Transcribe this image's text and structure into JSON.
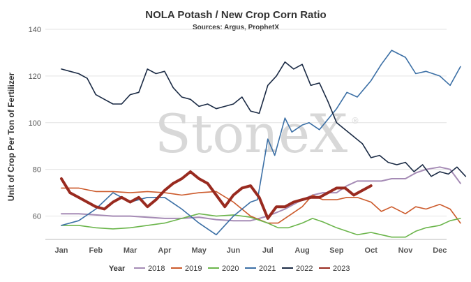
{
  "chart_data": {
    "type": "line",
    "title": "NOLA Potash / New Crop Corn Ratio",
    "subtitle": "Sources: Argus, ProphetX",
    "ylabel": "Unit of Crop Per Ton of Fertilizer",
    "xlabel": "",
    "ylim": [
      50,
      140
    ],
    "yticks": [
      60,
      80,
      100,
      120,
      140
    ],
    "xlim": [
      0,
      12
    ],
    "month_labels": [
      "Jan",
      "Feb",
      "Mar",
      "Apr",
      "May",
      "Jun",
      "Jul",
      "Aug",
      "Sep",
      "Oct",
      "Nov",
      "Dec"
    ],
    "grid": "horizontal",
    "legend_title": "Year",
    "legend_position": "bottom",
    "watermark": "StoneX",
    "watermark_mark": "®",
    "series": [
      {
        "name": "2018",
        "color": "#a58bb5",
        "width": 2,
        "x": [
          0,
          0.5,
          1,
          1.5,
          2,
          2.5,
          3,
          3.5,
          4,
          4.5,
          5,
          5.5,
          6,
          6.5,
          7,
          7.3,
          7.6,
          8,
          8.3,
          8.6,
          9,
          9.3,
          9.6,
          10,
          10.3,
          10.6,
          11,
          11.3,
          11.6
        ],
        "y": [
          61,
          61,
          60.5,
          60,
          60,
          59.5,
          59,
          59,
          59.5,
          58.5,
          58,
          58,
          60,
          63,
          67,
          69,
          70,
          70,
          73,
          75,
          75,
          75,
          76,
          76,
          78.5,
          80,
          81,
          80,
          74
        ]
      },
      {
        "name": "2019",
        "color": "#cc5a2b",
        "width": 1.6,
        "x": [
          0,
          0.5,
          1,
          1.5,
          2,
          2.5,
          3,
          3.5,
          4,
          4.5,
          5,
          5.5,
          6,
          6.3,
          6.6,
          7,
          7.3,
          7.6,
          8,
          8.3,
          8.6,
          9,
          9.3,
          9.6,
          10,
          10.3,
          10.6,
          11,
          11.3,
          11.6
        ],
        "y": [
          72,
          72,
          70.5,
          70.5,
          70,
          70.5,
          70,
          69,
          70,
          70.5,
          66,
          60,
          57,
          57,
          60,
          64,
          69,
          67,
          67,
          68,
          68,
          66,
          62,
          64,
          61,
          64,
          63,
          65,
          63,
          57
        ]
      },
      {
        "name": "2020",
        "color": "#6bb54b",
        "width": 1.6,
        "x": [
          0,
          0.5,
          1,
          1.5,
          2,
          2.5,
          3,
          3.5,
          4,
          4.5,
          5,
          5.5,
          6,
          6.3,
          6.6,
          7,
          7.3,
          7.6,
          8,
          8.3,
          8.6,
          9,
          9.3,
          9.6,
          10,
          10.3,
          10.6,
          11,
          11.3,
          11.6
        ],
        "y": [
          56,
          56,
          55,
          54.5,
          55,
          56,
          57,
          59,
          61,
          60,
          60.5,
          59.5,
          57,
          55,
          55,
          57,
          59,
          57.5,
          55,
          53.5,
          52,
          53,
          52,
          51,
          51,
          53.5,
          55,
          56,
          58,
          59
        ]
      },
      {
        "name": "2021",
        "color": "#3b6fa5",
        "width": 1.6,
        "x": [
          0,
          0.5,
          1,
          1.5,
          2,
          2.5,
          3,
          3.5,
          4,
          4.5,
          5,
          5.5,
          5.7,
          6,
          6.2,
          6.5,
          6.7,
          7,
          7.2,
          7.5,
          8,
          8.3,
          8.6,
          9,
          9.3,
          9.6,
          10,
          10.3,
          10.6,
          11,
          11.3,
          11.6
        ],
        "y": [
          56,
          58,
          63,
          70,
          66,
          68,
          68,
          63,
          57,
          52,
          60,
          66,
          67,
          93,
          86,
          102,
          96,
          99,
          100,
          97,
          106,
          113,
          111,
          118,
          125,
          131,
          128,
          121,
          122,
          120,
          116,
          124
        ]
      },
      {
        "name": "2022",
        "color": "#1a2a44",
        "width": 1.6,
        "x": [
          0,
          0.25,
          0.5,
          0.75,
          1,
          1.25,
          1.5,
          1.75,
          2,
          2.25,
          2.5,
          2.75,
          3,
          3.25,
          3.5,
          3.75,
          4,
          4.25,
          4.5,
          4.75,
          5,
          5.25,
          5.5,
          5.75,
          6,
          6.25,
          6.5,
          6.75,
          7,
          7.25,
          7.5,
          7.75,
          8,
          8.25,
          8.5,
          8.75,
          9,
          9.25,
          9.5,
          9.75,
          10,
          10.25,
          10.5,
          10.75,
          11,
          11.25,
          11.5,
          11.75
        ],
        "y": [
          123,
          122,
          121,
          119,
          112,
          110,
          108,
          108,
          112,
          113,
          123,
          121,
          122,
          115,
          111,
          110,
          107,
          108,
          106,
          107,
          108,
          111,
          105,
          104,
          116,
          120,
          126,
          123,
          125,
          116,
          117,
          109,
          100,
          97,
          94,
          91,
          85,
          86,
          83,
          82,
          83,
          79,
          82,
          77,
          79,
          78,
          81,
          77
        ]
      },
      {
        "name": "2023",
        "color": "#992a1f",
        "width": 4,
        "x": [
          0,
          0.25,
          0.5,
          0.75,
          1,
          1.25,
          1.5,
          1.75,
          2,
          2.25,
          2.5,
          2.75,
          3,
          3.25,
          3.5,
          3.75,
          4,
          4.25,
          4.5,
          4.75,
          5,
          5.25,
          5.5,
          5.75,
          6,
          6.25,
          6.5,
          6.75,
          7,
          7.25,
          7.5,
          7.75,
          8,
          8.25,
          8.5,
          8.75,
          9
        ],
        "y": [
          76,
          70,
          68,
          66,
          64,
          63,
          66,
          68,
          66,
          68,
          64,
          67,
          71,
          74,
          76,
          79,
          76,
          74,
          69,
          64,
          69,
          72,
          73,
          68,
          59,
          64,
          64,
          66,
          67,
          68,
          68,
          70,
          72,
          72,
          69,
          71,
          73
        ]
      }
    ]
  }
}
